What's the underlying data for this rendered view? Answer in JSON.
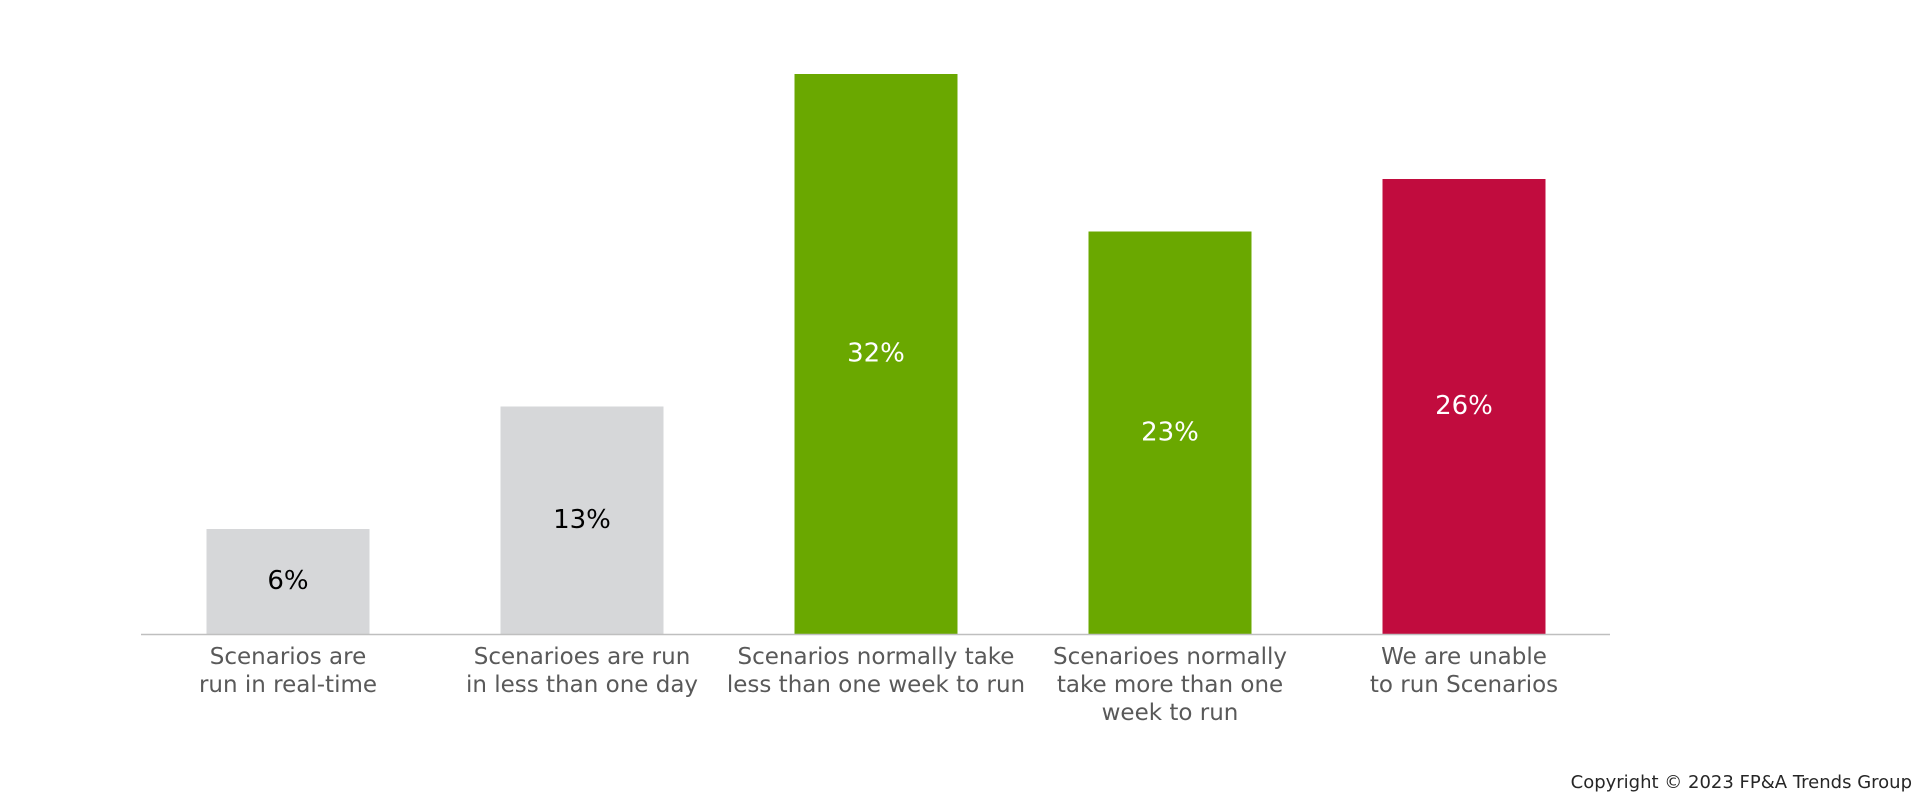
{
  "chart_data": {
    "type": "bar",
    "categories": [
      [
        "Scenarios are",
        "run in real-time"
      ],
      [
        "Scenarioes are run",
        "in less than one day"
      ],
      [
        "Scenarios normally take",
        "less than one week to run"
      ],
      [
        "Scenarioes normally",
        "take more than one",
        "week to run"
      ],
      [
        "We are unable",
        "to run Scenarios"
      ]
    ],
    "values": [
      6,
      13,
      32,
      23,
      26
    ],
    "data_labels": [
      "6%",
      "13%",
      "32%",
      "23%",
      "26%"
    ],
    "bar_colors": [
      "#d6d7d9",
      "#d6d7d9",
      "#6aa800",
      "#6aa800",
      "#c10c3e"
    ],
    "label_colors": [
      "#000000",
      "#000000",
      "#ffffff",
      "#ffffff",
      "#ffffff"
    ],
    "ylim": [
      0,
      32
    ],
    "grid": false,
    "title": "",
    "xlabel": "",
    "ylabel": ""
  },
  "footer": {
    "copyright": "Copyright © 2023 FP&A Trends Group"
  }
}
